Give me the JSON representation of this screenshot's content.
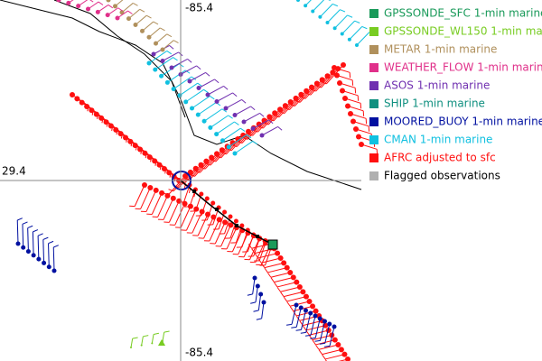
{
  "map": {
    "labels": {
      "top_longitude": "-85.4",
      "latitude": "29.4",
      "bottom_longitude": "-85.4"
    },
    "legend": [
      {
        "label": "GPSSONDE_SFC 1-min marine",
        "color": "#1a9a5a",
        "text_color": "#1a9a5a"
      },
      {
        "label": "GPSSONDE_WL150 1-min marine",
        "color": "#78cc22",
        "text_color": "#78cc22"
      },
      {
        "label": "METAR 1-min marine",
        "color": "#b0905c",
        "text_color": "#b0905c"
      },
      {
        "label": "WEATHER_FLOW 1-min marine",
        "color": "#e0308a",
        "text_color": "#e0308a"
      },
      {
        "label": "ASOS 1-min marine",
        "color": "#7030b0",
        "text_color": "#7030b0"
      },
      {
        "label": "SHIP 1-min marine",
        "color": "#109080",
        "text_color": "#109080"
      },
      {
        "label": "MOORED_BUOY 1-min marine",
        "color": "#0010a0",
        "text_color": "#0010a0"
      },
      {
        "label": "CMAN 1-min marine",
        "color": "#10c0e0",
        "text_color": "#10c0e0"
      },
      {
        "label": "AFRC adjusted to sfc",
        "color": "#ff1010",
        "text_color": "#ff1010"
      },
      {
        "label": "Flagged observations",
        "color": "#b0b0b0",
        "text_color": "#000000"
      }
    ]
  }
}
